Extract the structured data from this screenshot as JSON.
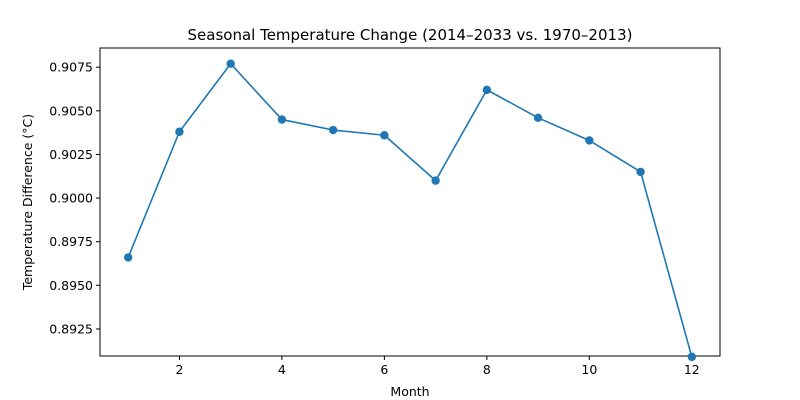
{
  "chart_data": {
    "type": "line",
    "title": "Seasonal Temperature Change (2014–2033 vs. 1970–2013)",
    "xlabel": "Month",
    "ylabel": "Temperature Difference (°C)",
    "xlim": [
      0.45,
      12.55
    ],
    "ylim": [
      0.89095,
      0.9086
    ],
    "xticks": [
      2,
      4,
      6,
      8,
      10,
      12
    ],
    "xtick_labels": [
      "2",
      "4",
      "6",
      "8",
      "10",
      "12"
    ],
    "yticks": [
      0.8925,
      0.895,
      0.8975,
      0.9,
      0.9025,
      0.905,
      0.9075
    ],
    "ytick_labels": [
      "0.8925",
      "0.8950",
      "0.8975",
      "0.9000",
      "0.9025",
      "0.9050",
      "0.9075"
    ],
    "grid": false,
    "series": [
      {
        "color": "#1f77b4",
        "marker": "circle",
        "x": [
          1,
          2,
          3,
          4,
          5,
          6,
          7,
          8,
          9,
          10,
          11,
          12
        ],
        "y": [
          0.8966,
          0.9038,
          0.9077,
          0.9045,
          0.9039,
          0.9036,
          0.901,
          0.9062,
          0.9046,
          0.9033,
          0.9015,
          0.8909
        ]
      }
    ]
  }
}
